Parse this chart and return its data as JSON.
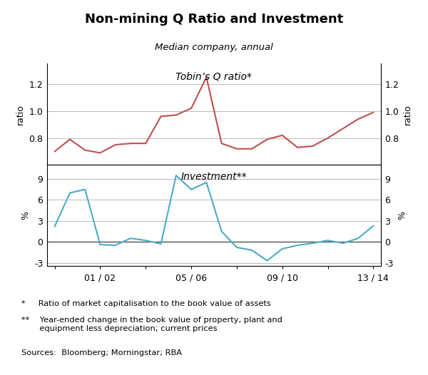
{
  "title": "Non-mining Q Ratio and Investment",
  "subtitle": "Median company, annual",
  "tobin_label": "Tobin’s Q ratio*",
  "invest_label": "Investment**",
  "top_ylabel_left": "ratio",
  "top_ylabel_right": "ratio",
  "bottom_ylabel_left": "%",
  "bottom_ylabel_right": "%",
  "tobin_color": "#c0504d",
  "invest_color": "#4bacc6",
  "footnote1": "*     Ratio of market capitalisation to the book value of assets",
  "footnote2": "**    Year-ended change in the book value of property, plant and\n       equipment less depreciation; current prices",
  "footnote3": "Sources:  Bloomberg; Morningstar; RBA",
  "tobin_x": [
    0,
    1,
    2,
    3,
    4,
    5,
    6,
    7,
    8,
    9,
    10,
    11,
    12,
    13,
    14,
    15,
    16,
    17,
    18,
    19,
    20,
    21
  ],
  "tobin_y": [
    0.7,
    0.79,
    0.71,
    0.69,
    0.75,
    0.76,
    0.76,
    0.96,
    0.97,
    1.02,
    1.25,
    0.76,
    0.72,
    0.72,
    0.79,
    0.82,
    0.73,
    0.74,
    0.8,
    0.87,
    0.94,
    0.99
  ],
  "invest_x": [
    0,
    1,
    2,
    3,
    4,
    5,
    6,
    7,
    8,
    9,
    10,
    11,
    12,
    13,
    14,
    15,
    16,
    17,
    18,
    19,
    20,
    21
  ],
  "invest_y": [
    2.2,
    7.0,
    7.5,
    -0.4,
    -0.5,
    0.5,
    0.2,
    -0.3,
    9.5,
    7.5,
    8.5,
    1.5,
    -0.8,
    -1.2,
    -2.7,
    -1.0,
    -0.5,
    -0.2,
    0.2,
    -0.2,
    0.5,
    2.3
  ],
  "tobin_ylim": [
    0.6,
    1.35
  ],
  "tobin_yticks": [
    0.8,
    1.0,
    1.2
  ],
  "tobin_yticklabels": [
    "0.8",
    "1.0",
    "1.2"
  ],
  "invest_ylim": [
    -3.5,
    11.0
  ],
  "invest_yticks": [
    -3,
    0,
    3,
    6,
    9
  ],
  "invest_yticklabels": [
    "-3",
    "0",
    "3",
    "6",
    "9"
  ],
  "x_tick_pos": [
    0,
    3,
    6,
    9,
    12,
    15,
    18,
    21
  ],
  "x_tick_labels": [
    "",
    "01 / 02",
    "",
    "05 / 06",
    "",
    "09 / 10",
    "",
    "13 / 14"
  ],
  "background_color": "#ffffff",
  "grid_color": "#b0b0b0",
  "zero_line_color": "#404040"
}
